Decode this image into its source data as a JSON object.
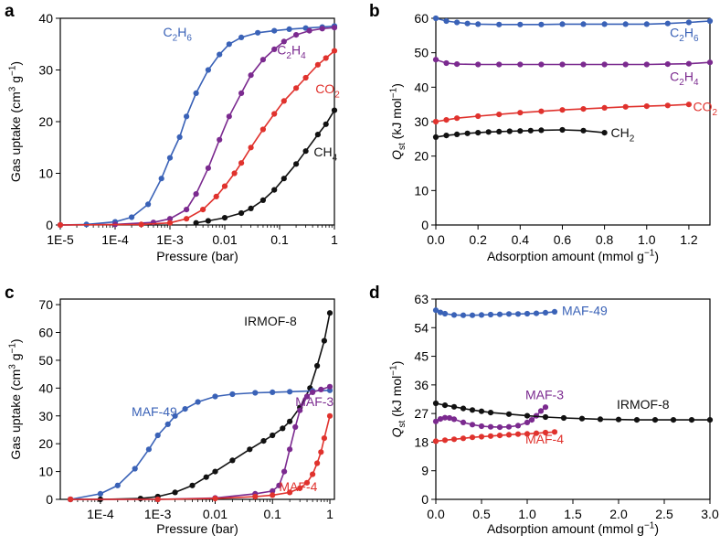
{
  "colors": {
    "blue": "#3a62b7",
    "purple": "#7b2a8f",
    "red": "#e0322d",
    "black": "#111111",
    "axis": "#000000"
  },
  "chart_data": [
    {
      "panel": "a",
      "type": "line",
      "xscale": "log",
      "xlabel": "Pressure (bar)",
      "ylabel": "Gas uptake (cm3 g-1)",
      "ylabel_parts": [
        "Gas uptake (cm",
        "3",
        " g",
        "−1",
        ")"
      ],
      "xlim": [
        1e-05,
        1
      ],
      "ylim": [
        0,
        40
      ],
      "xticks": [
        1e-05,
        0.0001,
        0.001,
        0.01,
        0.1,
        1
      ],
      "xtick_labels": [
        "1E-5",
        "1E-4",
        "1E-3",
        "0.01",
        "0.1",
        "1"
      ],
      "yticks": [
        0,
        10,
        20,
        30,
        40
      ],
      "ytick_labels": [
        "0",
        "10",
        "20",
        "30",
        "40"
      ],
      "series": [
        {
          "name": "C2H6",
          "label_parts": [
            "C",
            "2",
            "H",
            "6"
          ],
          "color": "blue",
          "label_at": [
            0.00075,
            36.5
          ],
          "x": [
            1e-05,
            3e-05,
            0.0001,
            0.0002,
            0.0004,
            0.0007,
            0.001,
            0.0015,
            0.002,
            0.003,
            0.005,
            0.008,
            0.012,
            0.02,
            0.04,
            0.08,
            0.15,
            0.3,
            0.6,
            1
          ],
          "y": [
            0,
            0.1,
            0.6,
            1.5,
            4,
            9,
            13,
            17,
            21,
            25.5,
            30,
            33,
            35,
            36.3,
            37.2,
            37.6,
            37.9,
            38.1,
            38.3,
            38.5
          ]
        },
        {
          "name": "C2H4",
          "label_parts": [
            "C",
            "2",
            "H",
            "4"
          ],
          "color": "purple",
          "label_at": [
            0.09,
            33
          ],
          "x": [
            1e-05,
            0.0001,
            0.0005,
            0.001,
            0.002,
            0.003,
            0.005,
            0.008,
            0.012,
            0.02,
            0.03,
            0.05,
            0.08,
            0.12,
            0.2,
            0.35,
            0.6,
            1
          ],
          "y": [
            0,
            0.1,
            0.5,
            1.2,
            3,
            6,
            11,
            16.5,
            21,
            25.5,
            29,
            32,
            34,
            35.5,
            36.8,
            37.6,
            38,
            38.2
          ]
        },
        {
          "name": "CO2",
          "label_parts": [
            "CO",
            "2"
          ],
          "color": "red",
          "label_at": [
            0.45,
            25.5
          ],
          "x": [
            1e-05,
            0.0003,
            0.001,
            0.002,
            0.004,
            0.007,
            0.01,
            0.015,
            0.02,
            0.03,
            0.05,
            0.08,
            0.12,
            0.2,
            0.3,
            0.5,
            0.7,
            1
          ],
          "y": [
            0,
            0.1,
            0.4,
            1.2,
            3,
            5.5,
            7.5,
            10,
            12,
            15,
            18.5,
            21.5,
            24,
            26.5,
            28.5,
            31,
            32.3,
            33.7
          ]
        },
        {
          "name": "CH4",
          "label_parts": [
            "CH",
            "4"
          ],
          "color": "black",
          "label_at": [
            0.42,
            13.3
          ],
          "x": [
            0.003,
            0.005,
            0.01,
            0.02,
            0.03,
            0.05,
            0.08,
            0.12,
            0.2,
            0.3,
            0.5,
            0.7,
            1
          ],
          "y": [
            0.4,
            0.8,
            1.4,
            2.3,
            3.2,
            4.8,
            6.8,
            9,
            11.8,
            14.3,
            17.5,
            19.5,
            22.2
          ]
        }
      ]
    },
    {
      "panel": "b",
      "type": "line",
      "xscale": "linear",
      "xlabel": "Adsorption amount (mmol g-1)",
      "xlabel_parts": [
        "Adsorption amount (mmol g",
        "−1",
        ")"
      ],
      "ylabel": "Qst (kJ mol-1)",
      "ylabel_parts": [
        "Q",
        "st",
        " (kJ mol",
        "−1",
        ")"
      ],
      "xlim": [
        0,
        1.3
      ],
      "ylim": [
        0,
        60
      ],
      "xticks": [
        0,
        0.2,
        0.4,
        0.6,
        0.8,
        1.0,
        1.2
      ],
      "xtick_labels": [
        "0.0",
        "0.2",
        "0.4",
        "0.6",
        "0.8",
        "1.0",
        "1.2"
      ],
      "yticks": [
        0,
        10,
        20,
        30,
        40,
        50,
        60
      ],
      "ytick_labels": [
        "0",
        "10",
        "20",
        "30",
        "40",
        "50",
        "60"
      ],
      "series": [
        {
          "name": "C2H6",
          "label_parts": [
            "C",
            "2",
            "H",
            "6"
          ],
          "color": "blue",
          "label_at": [
            1.11,
            54.5
          ],
          "x": [
            0,
            0.05,
            0.1,
            0.15,
            0.2,
            0.3,
            0.4,
            0.5,
            0.6,
            0.7,
            0.8,
            0.9,
            1.0,
            1.1,
            1.2,
            1.3
          ],
          "y": [
            60,
            59.2,
            58.8,
            58.5,
            58.3,
            58.2,
            58.2,
            58.2,
            58.3,
            58.3,
            58.3,
            58.3,
            58.3,
            58.5,
            58.8,
            59.2
          ]
        },
        {
          "name": "C2H4",
          "label_parts": [
            "C",
            "2",
            "H",
            "4"
          ],
          "color": "purple",
          "label_at": [
            1.11,
            41.8
          ],
          "x": [
            0,
            0.05,
            0.1,
            0.2,
            0.3,
            0.4,
            0.5,
            0.6,
            0.7,
            0.8,
            0.9,
            1.0,
            1.1,
            1.2,
            1.3
          ],
          "y": [
            48,
            47,
            46.7,
            46.6,
            46.6,
            46.6,
            46.6,
            46.6,
            46.6,
            46.6,
            46.6,
            46.6,
            46.7,
            46.8,
            47.2
          ]
        },
        {
          "name": "CO2",
          "label_parts": [
            "CO",
            "2"
          ],
          "color": "red",
          "label_at": [
            1.22,
            33
          ],
          "x": [
            0,
            0.05,
            0.1,
            0.2,
            0.3,
            0.4,
            0.5,
            0.6,
            0.7,
            0.8,
            0.9,
            1.0,
            1.1,
            1.2
          ],
          "y": [
            30,
            30.5,
            31,
            31.6,
            32.1,
            32.6,
            33,
            33.4,
            33.7,
            34,
            34.3,
            34.5,
            34.7,
            35
          ]
        },
        {
          "name": "CH2",
          "label_parts": [
            "CH",
            "2"
          ],
          "color": "black",
          "label_at": [
            0.83,
            25.5
          ],
          "x": [
            0,
            0.05,
            0.1,
            0.15,
            0.2,
            0.25,
            0.3,
            0.35,
            0.4,
            0.45,
            0.5,
            0.6,
            0.7,
            0.8
          ],
          "y": [
            25.5,
            26,
            26.3,
            26.6,
            26.8,
            27,
            27.1,
            27.2,
            27.3,
            27.4,
            27.5,
            27.6,
            27.4,
            26.8
          ]
        }
      ]
    },
    {
      "panel": "c",
      "type": "line",
      "xscale": "log",
      "xlabel": "Pressure (bar)",
      "ylabel": "Gas uptake (cm3 g-1)",
      "ylabel_parts": [
        "Gas uptake (cm",
        "3",
        " g",
        "−1",
        ")"
      ],
      "xlim": [
        2e-05,
        1.2
      ],
      "ylim": [
        0,
        72
      ],
      "xticks": [
        0.0001,
        0.001,
        0.01,
        0.1,
        1
      ],
      "xtick_labels": [
        "1E-4",
        "1E-3",
        "0.01",
        "0.1",
        "1"
      ],
      "yticks": [
        0,
        10,
        20,
        30,
        40,
        50,
        60,
        70
      ],
      "ytick_labels": [
        "0",
        "10",
        "20",
        "30",
        "40",
        "50",
        "60",
        "70"
      ],
      "series": [
        {
          "name": "IRMOF-8",
          "color": "black",
          "label_at": [
            0.032,
            62.5
          ],
          "x": [
            3e-05,
            0.0001,
            0.0005,
            0.001,
            0.002,
            0.004,
            0.007,
            0.01,
            0.02,
            0.04,
            0.07,
            0.1,
            0.15,
            0.2,
            0.3,
            0.45,
            0.6,
            0.8,
            1
          ],
          "y": [
            0,
            0,
            0.3,
            1,
            2.5,
            5,
            8,
            10,
            14,
            18,
            21,
            23,
            25.5,
            28,
            33,
            40,
            48,
            57,
            67
          ]
        },
        {
          "name": "MAF-49",
          "color": "blue",
          "label_at": [
            0.00035,
            30
          ],
          "x": [
            3e-05,
            0.0001,
            0.0002,
            0.0004,
            0.0007,
            0.001,
            0.0015,
            0.002,
            0.003,
            0.005,
            0.01,
            0.02,
            0.05,
            0.1,
            0.2,
            0.5,
            1
          ],
          "y": [
            0,
            2,
            5,
            11,
            18,
            23,
            27,
            30,
            32.5,
            35,
            37,
            37.8,
            38.3,
            38.5,
            38.7,
            39,
            39.2
          ]
        },
        {
          "name": "MAF-3",
          "color": "purple",
          "label_at": [
            0.25,
            33.5
          ],
          "x": [
            3e-05,
            0.001,
            0.01,
            0.05,
            0.1,
            0.13,
            0.16,
            0.2,
            0.25,
            0.3,
            0.4,
            0.5,
            0.7,
            1
          ],
          "y": [
            0,
            0,
            0.5,
            2,
            3,
            5,
            10,
            18,
            26,
            32,
            37,
            38.5,
            39.5,
            40.5
          ]
        },
        {
          "name": "MAF-4",
          "color": "red",
          "label_at": [
            0.13,
            3
          ],
          "x": [
            3e-05,
            0.001,
            0.01,
            0.05,
            0.1,
            0.2,
            0.3,
            0.4,
            0.5,
            0.6,
            0.7,
            0.8,
            1
          ],
          "y": [
            0,
            0,
            0.3,
            1,
            1.5,
            2.5,
            4,
            6,
            9,
            13,
            17,
            22,
            30
          ]
        }
      ]
    },
    {
      "panel": "d",
      "type": "line",
      "xscale": "linear",
      "xlabel": "Adsorption amount (mmol g-1)",
      "xlabel_parts": [
        "Adsorption amount (mmol g",
        "−1",
        ")"
      ],
      "ylabel": "Qst (kJ mol-1)",
      "ylabel_parts": [
        "Q",
        "st",
        " (kJ mol",
        "−1",
        ")"
      ],
      "xlim": [
        0,
        3.0
      ],
      "ylim": [
        0,
        63
      ],
      "xticks": [
        0,
        0.5,
        1.0,
        1.5,
        2.0,
        2.5,
        3.0
      ],
      "xtick_labels": [
        "0.0",
        "0.5",
        "1.0",
        "1.5",
        "2.0",
        "2.5",
        "3.0"
      ],
      "yticks": [
        0,
        9,
        18,
        27,
        36,
        45,
        54,
        63
      ],
      "ytick_labels": [
        "0",
        "9",
        "18",
        "27",
        "36",
        "45",
        "54",
        "63"
      ],
      "series": [
        {
          "name": "MAF-49",
          "color": "blue",
          "label_at": [
            1.38,
            57.9
          ],
          "x": [
            0,
            0.05,
            0.1,
            0.2,
            0.3,
            0.4,
            0.5,
            0.6,
            0.7,
            0.8,
            0.9,
            1.0,
            1.1,
            1.2,
            1.3
          ],
          "y": [
            59.5,
            58.8,
            58.4,
            58,
            57.9,
            57.9,
            58,
            58.1,
            58.2,
            58.3,
            58.3,
            58.4,
            58.5,
            58.7,
            59
          ]
        },
        {
          "name": "MAF-3",
          "color": "purple",
          "label_at": [
            0.98,
            31.5
          ],
          "x": [
            0,
            0.05,
            0.1,
            0.15,
            0.2,
            0.3,
            0.4,
            0.5,
            0.6,
            0.7,
            0.8,
            0.9,
            1.0,
            1.05,
            1.1,
            1.15,
            1.2
          ],
          "y": [
            24.5,
            25.3,
            25.7,
            25.6,
            25.2,
            24.2,
            23.5,
            23,
            22.8,
            22.7,
            22.8,
            23.2,
            24.2,
            25,
            26.3,
            27.8,
            29
          ]
        },
        {
          "name": "MAF-4",
          "color": "red",
          "label_at": [
            0.98,
            17.6
          ],
          "x": [
            0,
            0.1,
            0.2,
            0.3,
            0.4,
            0.5,
            0.6,
            0.7,
            0.8,
            0.9,
            1.0,
            1.1,
            1.2,
            1.3
          ],
          "y": [
            18.3,
            18.6,
            18.9,
            19.2,
            19.5,
            19.7,
            19.9,
            20.1,
            20.3,
            20.5,
            20.6,
            20.8,
            21,
            21.2
          ]
        },
        {
          "name": "IRMOF-8",
          "color": "black",
          "label_at": [
            1.98,
            28.5
          ],
          "x": [
            0,
            0.1,
            0.2,
            0.3,
            0.4,
            0.5,
            0.6,
            0.8,
            1.0,
            1.2,
            1.4,
            1.6,
            1.8,
            2.0,
            2.2,
            2.4,
            2.6,
            2.8,
            3.0
          ],
          "y": [
            30.2,
            29.6,
            29.1,
            28.6,
            28.1,
            27.7,
            27.3,
            26.8,
            26.3,
            25.9,
            25.6,
            25.4,
            25.2,
            25.1,
            25,
            25,
            25,
            25,
            25
          ]
        }
      ]
    }
  ],
  "panel_letters": [
    "a",
    "b",
    "c",
    "d"
  ]
}
